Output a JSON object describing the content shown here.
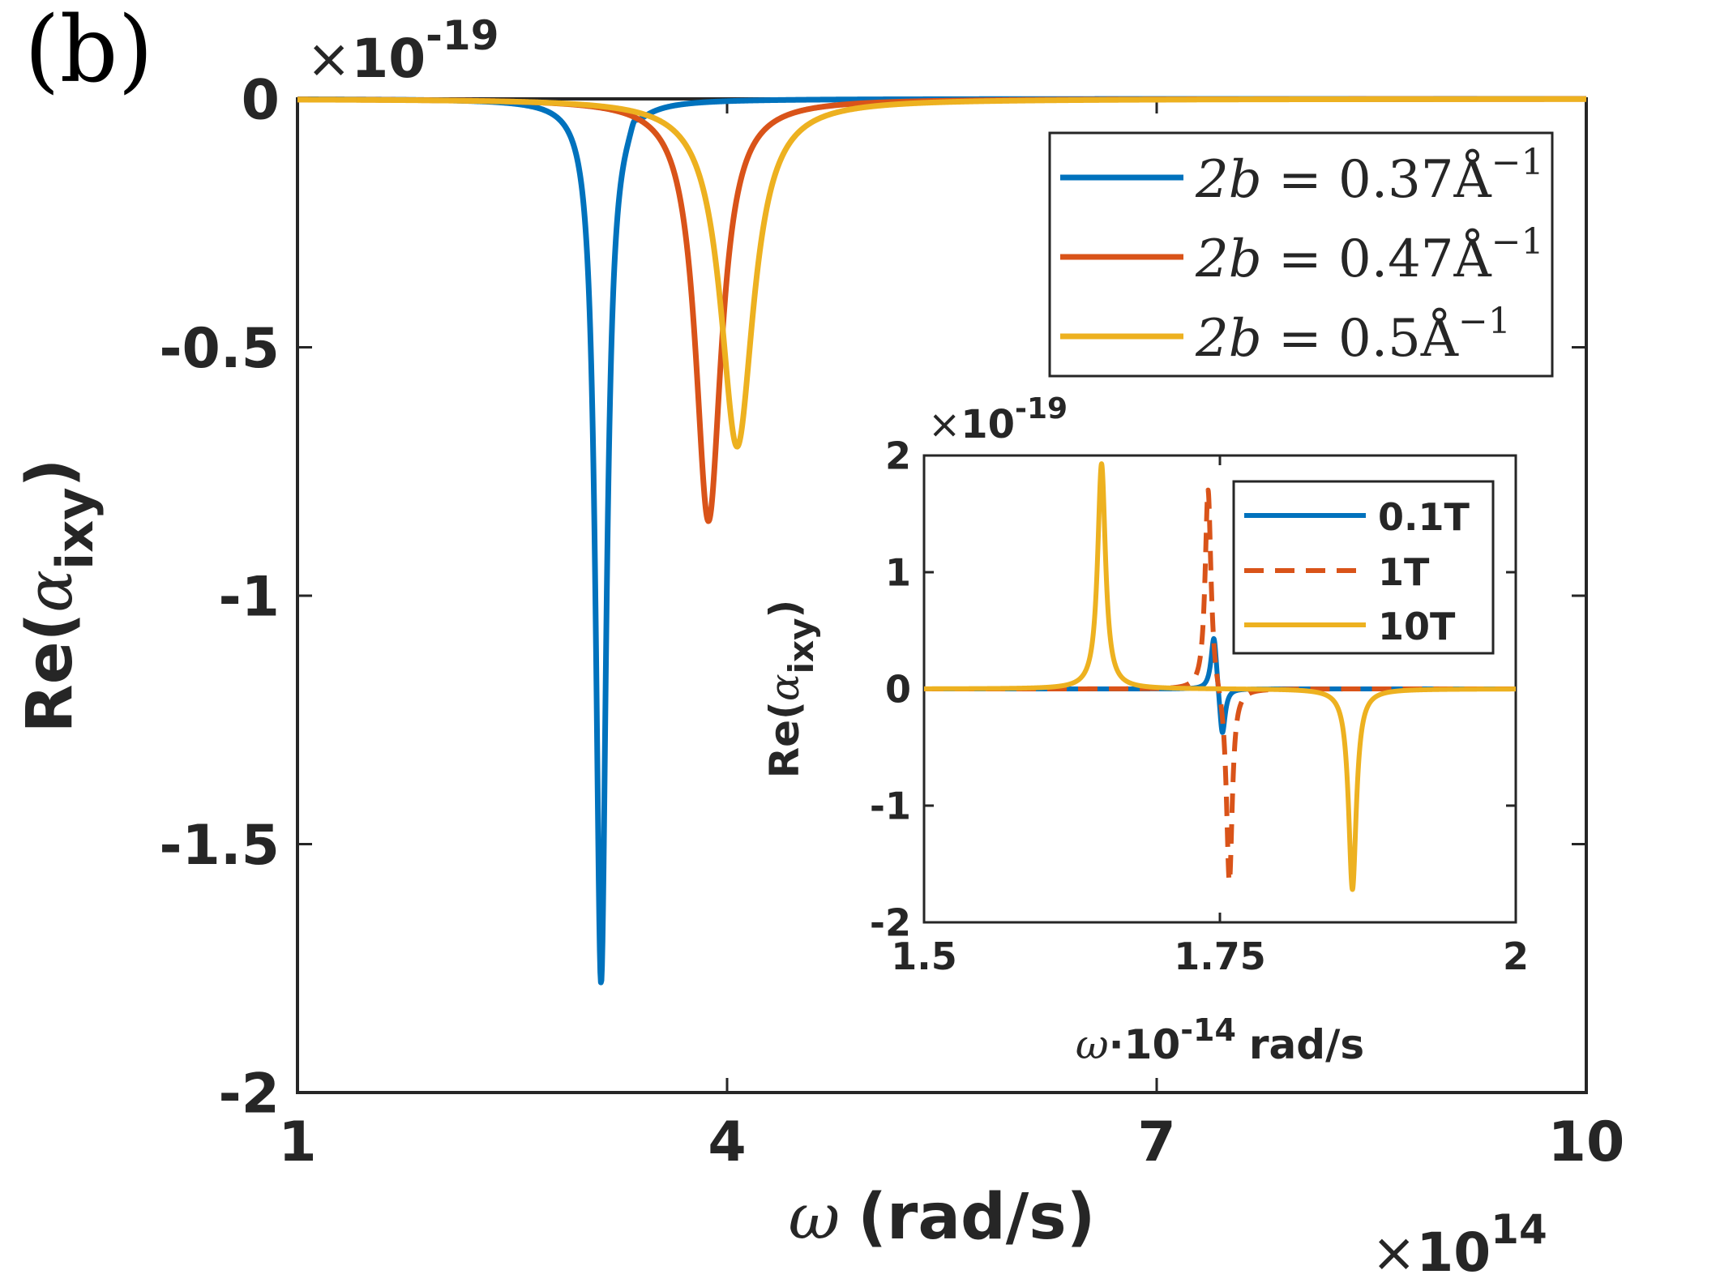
{
  "panel_label": "(b)",
  "colors": {
    "blue": "#0072BD",
    "red": "#D95319",
    "yellow": "#EDB120",
    "axis": "#262626"
  },
  "chart_data": [
    {
      "id": "main",
      "type": "line",
      "title": "",
      "xlabel": {
        "symbol": "ω",
        "text": "(rad/s)"
      },
      "ylabel": {
        "prefix": "Re(",
        "symbol": "α",
        "subscript": "ixy",
        "suffix": ")"
      },
      "x_multiplier": {
        "times": "×",
        "base": "10",
        "exponent": "14"
      },
      "y_multiplier": {
        "times": "×",
        "base": "10",
        "exponent": "-19"
      },
      "xlim": [
        1,
        10
      ],
      "ylim": [
        -2,
        0
      ],
      "xticks": [
        1,
        4,
        7,
        10
      ],
      "xtick_labels": [
        "1",
        "4",
        "7",
        "10"
      ],
      "yticks": [
        0,
        -0.5,
        -1,
        -1.5,
        -2
      ],
      "ytick_labels": [
        "0",
        "-0.5",
        "-1",
        "-1.5",
        "-2"
      ],
      "legend_position": "top-right",
      "series": [
        {
          "name": "2b = 0.37Å⁻¹",
          "label_lhs": "2b",
          "label_rhs": "0.37Å",
          "label_exp": "−1",
          "color": "#0072BD",
          "style": "solid",
          "peaks": [
            {
              "x0": 3.12,
              "amp": -1.78,
              "gamma": 0.045
            },
            {
              "x0": 3.35,
              "amp": 0.02,
              "gamma": 0.03
            }
          ]
        },
        {
          "name": "2b = 0.47Å⁻¹",
          "label_lhs": "2b",
          "label_rhs": "0.47Å",
          "label_exp": "−1",
          "color": "#D95319",
          "style": "solid",
          "peaks": [
            {
              "x0": 3.87,
              "amp": -0.85,
              "gamma": 0.11
            }
          ]
        },
        {
          "name": "2b = 0.5Å⁻¹",
          "label_lhs": "2b",
          "label_rhs": "0.5Å",
          "label_exp": "−1",
          "color": "#EDB120",
          "style": "solid",
          "peaks": [
            {
              "x0": 4.07,
              "amp": -0.7,
              "gamma": 0.14
            }
          ]
        }
      ]
    },
    {
      "id": "inset",
      "type": "line",
      "title": "",
      "xlabel": {
        "symbol": "ω",
        "text": "·10",
        "exponent": "-14",
        "unit": "rad/s"
      },
      "ylabel": {
        "prefix": "Re(",
        "symbol": "α",
        "subscript": "ixy",
        "suffix": ")"
      },
      "y_multiplier": {
        "times": "×",
        "base": "10",
        "exponent": "-19"
      },
      "xlim": [
        1.5,
        2
      ],
      "ylim": [
        -2,
        2
      ],
      "xticks": [
        1.5,
        1.75,
        2
      ],
      "xtick_labels": [
        "1.5",
        "1.75",
        "2"
      ],
      "yticks": [
        2,
        1,
        0,
        -1,
        -2
      ],
      "ytick_labels": [
        "2",
        "1",
        "0",
        "-1",
        "-2"
      ],
      "legend_position": "top-right",
      "series": [
        {
          "name": "0.1T",
          "color": "#0072BD",
          "style": "solid",
          "peaks": [
            {
              "x0": 1.745,
              "amp": 0.5,
              "gamma": 0.003
            },
            {
              "x0": 1.752,
              "amp": -0.45,
              "gamma": 0.003
            }
          ]
        },
        {
          "name": "1T",
          "color": "#D95319",
          "style": "dashed",
          "peaks": [
            {
              "x0": 1.74,
              "amp": 1.75,
              "gamma": 0.003
            },
            {
              "x0": 1.758,
              "amp": -1.7,
              "gamma": 0.003
            }
          ]
        },
        {
          "name": "10T",
          "color": "#EDB120",
          "style": "solid",
          "peaks": [
            {
              "x0": 1.65,
              "amp": 1.93,
              "gamma": 0.004
            },
            {
              "x0": 1.862,
              "amp": -1.72,
              "gamma": 0.004
            }
          ]
        }
      ]
    }
  ]
}
